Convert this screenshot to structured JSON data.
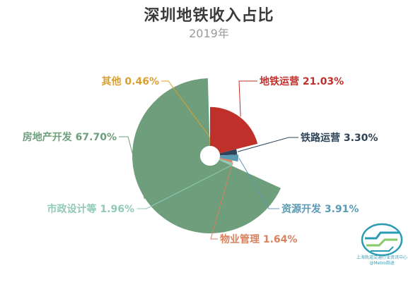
{
  "chart_data": {
    "type": "pie",
    "subtype": "rose",
    "title": "深圳地铁收入占比",
    "subtitle": "2019年",
    "slices": [
      {
        "label": "地铁运营",
        "value": 21.03,
        "value_text": "21.03%",
        "color": "#c0302b"
      },
      {
        "label": "铁路运营",
        "value": 3.3,
        "value_text": "3.30%",
        "color": "#2e4357"
      },
      {
        "label": "资源开发",
        "value": 3.91,
        "value_text": "3.91%",
        "color": "#5a9bb4"
      },
      {
        "label": "物业管理",
        "value": 1.64,
        "value_text": "1.64%",
        "color": "#d9825f"
      },
      {
        "label": "市政设计等",
        "value": 1.96,
        "value_text": "1.96%",
        "color": "#8fcab6"
      },
      {
        "label": "房地产开发",
        "value": 67.7,
        "value_text": "67.70%",
        "color": "#6e9e7c"
      },
      {
        "label": "其他",
        "value": 0.46,
        "value_text": "0.46%",
        "color": "#d9a033"
      }
    ]
  },
  "watermark": {
    "line1": "上海轨道交通行业资讯中心",
    "line2": "@Metro前途"
  }
}
